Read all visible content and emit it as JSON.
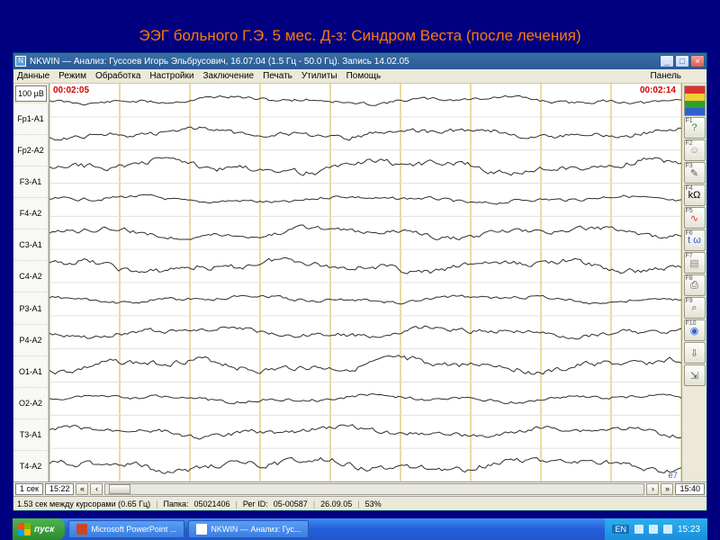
{
  "slide": {
    "title": "ЭЭГ больного Г.Э. 5 мес. Д-з: Синдром Веста (после лечения)",
    "bg_color": "#000080",
    "title_color": "#ff7a00"
  },
  "window": {
    "app_icon_letter": "N",
    "title": "NKWIN — Анализ: Гуссоев Игорь Эльбрусович, 16.07.04 (1.5 Гц - 50.0 Гц). Запись 14.02.05",
    "min": "_",
    "max": "□",
    "close": "×"
  },
  "menu": {
    "items": [
      "Данные",
      "Режим",
      "Обработка",
      "Настройки",
      "Заключение",
      "Печать",
      "Утилиты",
      "Помощь"
    ],
    "right": "Панель"
  },
  "amp_box": "100 µВ",
  "channels": [
    "Fp1-A1",
    "Fp2-A2",
    "F3-A1",
    "F4-A2",
    "C3-A1",
    "C4-A2",
    "P3-A1",
    "P4-A2",
    "O1-A1",
    "O2-A2",
    "T3-A1",
    "T4-A2"
  ],
  "plot": {
    "bg": "#ffffff",
    "hgrid_color": "#e0e0e0",
    "vgrid_color": "#d6b94a",
    "trace_color": "#303030",
    "trace_width": 1,
    "n_vgrid": 9,
    "time_left": "00:02:05",
    "time_right": "00:02:14",
    "page_badge": "e7"
  },
  "right_tools": {
    "top_colors": [
      "#e03030",
      "#f0d030",
      "#30a030",
      "#3060d0"
    ],
    "buttons": [
      {
        "fkey": "F1",
        "name": "help-icon",
        "glyph": "?",
        "color": "#2e8b2e"
      },
      {
        "fkey": "F2",
        "name": "head-icon",
        "glyph": "☺",
        "color": "#c08060"
      },
      {
        "fkey": "F3",
        "name": "probe-icon",
        "glyph": "✎",
        "color": "#555"
      },
      {
        "fkey": "F4",
        "name": "impedance-icon",
        "glyph": "kΩ",
        "color": "#000"
      },
      {
        "fkey": "F5",
        "name": "wave-icon",
        "glyph": "∿",
        "color": "#e03030"
      },
      {
        "fkey": "F6",
        "name": "time-icon",
        "glyph": "t ω",
        "color": "#3060d0"
      },
      {
        "fkey": "F7",
        "name": "chart-icon",
        "glyph": "▤",
        "color": "#888"
      },
      {
        "fkey": "F8",
        "name": "print-icon",
        "glyph": "⎙",
        "color": "#555"
      },
      {
        "fkey": "F9",
        "name": "lens-icon",
        "glyph": "⌕",
        "color": "#555"
      },
      {
        "fkey": "F10",
        "name": "compass-icon",
        "glyph": "◉",
        "color": "#3060d0"
      },
      {
        "fkey": "",
        "name": "page-down-icon",
        "glyph": "⇩",
        "color": "#555"
      },
      {
        "fkey": "",
        "name": "page-out-icon",
        "glyph": "⇲",
        "color": "#555"
      }
    ]
  },
  "timebar": {
    "scale_box": "1 сек",
    "left_time": "15:22",
    "nav_left_fast": "«",
    "nav_left": "‹",
    "nav_right": "›",
    "nav_right_fast": "»",
    "right_time": "15:40"
  },
  "status": {
    "cursor_info": "1.53 сек между курсорами (0.65 Гц)",
    "folder_label": "Папка:",
    "folder": "05021406",
    "reg_label": "Рег ID:",
    "reg": "05-00587",
    "date": "26.09.05",
    "pct": "53%"
  },
  "taskbar": {
    "start": "пуск",
    "items": [
      {
        "class": "ppt",
        "label": "Microsoft PowerPoint ..."
      },
      {
        "class": "nk",
        "label": "NKWIN — Анализ: Гус..."
      }
    ],
    "lang": "EN",
    "clock": "15:23"
  },
  "eeg": {
    "n_points": 220,
    "amp": 5.5,
    "seed_base": 11
  }
}
